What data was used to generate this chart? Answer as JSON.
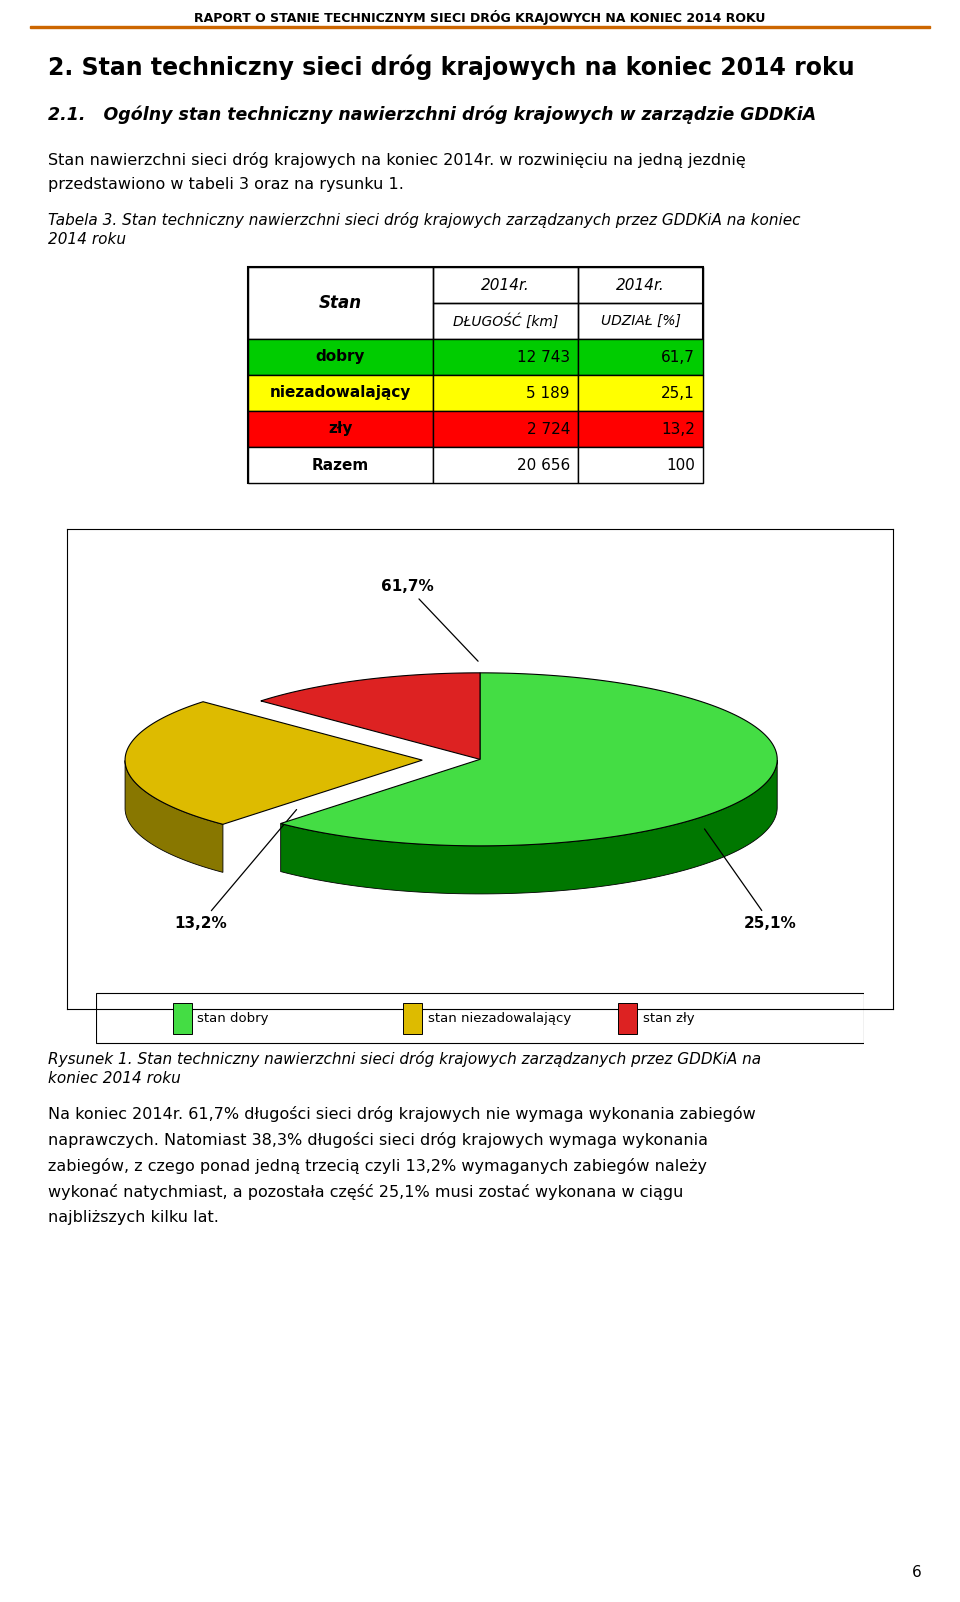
{
  "page_title": "RAPORT O STANIE TECHNICZNYM SIECI DRÓG KRAJOWYCH NA KONIEC 2014 ROKU",
  "section_title": "2. Stan techniczny sieci dróg krajowych na koniec 2014 roku",
  "subsection_title": "2.1.   Ogólny stan techniczny nawierzchni dróg krajowych w zarządzie GDDKiA",
  "para1_line1": "Stan nawierzchni sieci dróg krajowych na koniec 2014r. w rozwinięciu na jedną jezdnię",
  "para1_line2": "przedstawiono w tabeli 3 oraz na rysunku 1.",
  "table_cap1": "Tabela 3. Stan techniczny nawierzchni sieci dróg krajowych zarządzanych przez GDDKiA na koniec",
  "table_cap2": "2014 roku",
  "table_col1_header": "Stan",
  "table_col2_header": "DŁUGOŚĆ [km]",
  "table_col3_header": "UDZIAŁ [%]",
  "table_rows": [
    {
      "label": "dobry",
      "length": "12 743",
      "share": "61,7",
      "bg": "#00cc00",
      "fg": "#000000"
    },
    {
      "label": "niezadowalający",
      "length": "5 189",
      "share": "25,1",
      "bg": "#ffff00",
      "fg": "#000000"
    },
    {
      "label": "zły",
      "length": "2 724",
      "share": "13,2",
      "bg": "#ff0000",
      "fg": "#000000"
    },
    {
      "label": "Razem",
      "length": "20 656",
      "share": "100",
      "bg": "#ffffff",
      "fg": "#000000"
    }
  ],
  "pie_values": [
    61.7,
    25.1,
    13.2
  ],
  "pie_colors_top": [
    "#44dd44",
    "#ddbb00",
    "#dd2222"
  ],
  "pie_colors_side": [
    "#007700",
    "#887700",
    "#880000"
  ],
  "pie_legend_labels": [
    "stan dobry",
    "stan niezadowalający",
    "stan zły"
  ],
  "pie_legend_colors": [
    "#44dd44",
    "#ddbb00",
    "#dd2222"
  ],
  "pie_annot_61": "61,7%",
  "pie_annot_25": "25,1%",
  "pie_annot_13": "13,2%",
  "fig_cap1": "Rysunek 1. Stan techniczny nawierzchni sieci dróg krajowych zarządzanych przez GDDKiA na",
  "fig_cap2": "koniec 2014 roku",
  "para2_lines": [
    "Na koniec 2014r. 61,7% długości sieci dróg krajowych nie wymaga wykonania zabiegów",
    "naprawczych. Natomiast 38,3% długości sieci dróg krajowych wymaga wykonania",
    "zabiegów, z czego ponad jedną trzecią czyli 13,2% wymaganych zabiegów należy",
    "wykonać natychmiast, a pozostała część 25,1% musi zostać wykonana w ciągu",
    "najbliższych kilku lat."
  ],
  "page_number": "6"
}
